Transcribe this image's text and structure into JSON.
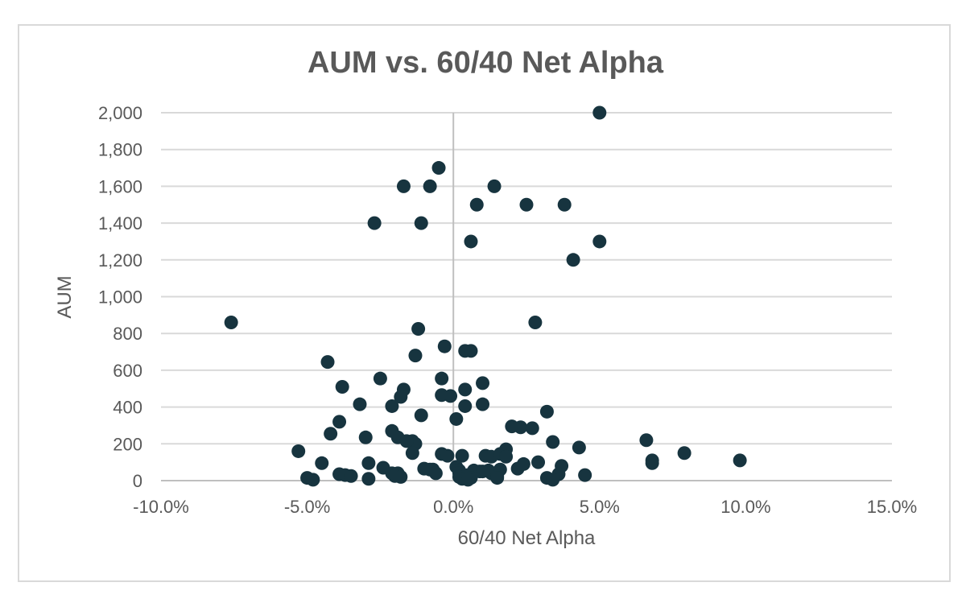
{
  "chart_data": {
    "type": "scatter",
    "title": "AUM vs. 60/40 Net Alpha",
    "xlabel": "60/40 Net Alpha",
    "ylabel": "AUM",
    "xlim": [
      -10,
      15
    ],
    "ylim": [
      0,
      2000
    ],
    "x_ticks": [
      "-10.0%",
      "-5.0%",
      "0.0%",
      "5.0%",
      "10.0%",
      "15.0%"
    ],
    "x_tick_values": [
      -10,
      -5,
      0,
      5,
      10,
      15
    ],
    "y_ticks": [
      "0",
      "200",
      "400",
      "600",
      "800",
      "1,000",
      "1,200",
      "1,400",
      "1,600",
      "1,800",
      "2,000"
    ],
    "y_tick_values": [
      0,
      200,
      400,
      600,
      800,
      1000,
      1200,
      1400,
      1600,
      1800,
      2000
    ],
    "grid": {
      "horizontal": true,
      "vertical": false
    },
    "legend": "none",
    "marker_color": "#17343f",
    "x": [
      5.0,
      -0.5,
      -1.7,
      -0.8,
      1.4,
      0.8,
      2.5,
      3.8,
      -2.7,
      -1.1,
      0.6,
      5.0,
      4.1,
      -7.6,
      2.8,
      -1.2,
      -0.3,
      0.4,
      0.6,
      -1.3,
      -4.3,
      -2.5,
      -0.4,
      1.0,
      -3.8,
      -1.7,
      0.4,
      -0.4,
      -0.1,
      -1.8,
      -3.2,
      -2.1,
      1.0,
      0.4,
      -1.1,
      0.1,
      3.2,
      -3.9,
      2.0,
      2.3,
      2.7,
      -4.2,
      -2.1,
      -3.0,
      -1.9,
      -1.4,
      -1.3,
      -1.6,
      6.6,
      1.8,
      3.4,
      4.3,
      -1.4,
      -5.3,
      -0.4,
      -0.2,
      0.3,
      1.1,
      1.3,
      1.6,
      1.8,
      7.9,
      9.8,
      6.8,
      6.8,
      -4.5,
      -2.9,
      -2.4,
      -1.0,
      -0.7,
      0.1,
      0.2,
      0.7,
      0.9,
      1.2,
      1.6,
      2.2,
      2.4,
      2.9,
      3.7,
      -3.9,
      -3.7,
      -3.5,
      -2.1,
      -1.9,
      -0.8,
      -0.6,
      0.2,
      0.5,
      1.0,
      1.3,
      1.5,
      3.6,
      4.5,
      -4.8,
      -5.0,
      -2.9,
      -2.0,
      -1.8,
      0.2,
      0.3,
      0.6,
      0.5,
      3.2,
      3.4,
      1.5
    ],
    "y": [
      2000,
      1700,
      1600,
      1600,
      1600,
      1500,
      1500,
      1500,
      1400,
      1400,
      1300,
      1300,
      1200,
      860,
      860,
      825,
      730,
      705,
      705,
      680,
      645,
      555,
      555,
      530,
      510,
      495,
      495,
      465,
      460,
      455,
      415,
      405,
      415,
      405,
      355,
      335,
      375,
      320,
      295,
      290,
      285,
      255,
      270,
      235,
      235,
      215,
      200,
      215,
      220,
      170,
      210,
      180,
      150,
      160,
      145,
      135,
      135,
      135,
      130,
      145,
      130,
      150,
      110,
      110,
      95,
      95,
      95,
      70,
      65,
      60,
      75,
      55,
      55,
      50,
      55,
      60,
      65,
      90,
      100,
      80,
      35,
      30,
      25,
      40,
      40,
      60,
      40,
      40,
      30,
      50,
      40,
      25,
      35,
      30,
      5,
      15,
      10,
      25,
      20,
      20,
      10,
      15,
      5,
      15,
      5,
      15
    ]
  }
}
